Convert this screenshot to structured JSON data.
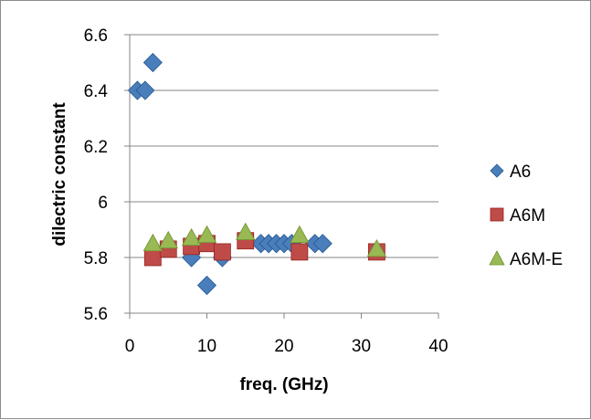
{
  "chart_data": {
    "type": "scatter",
    "title": "",
    "xlabel": "freq. (GHz)",
    "ylabel": "dilectric constant",
    "xlim": [
      0,
      40
    ],
    "ylim": [
      5.6,
      6.6
    ],
    "x_ticks": [
      "0",
      "10",
      "20",
      "30",
      "40"
    ],
    "y_ticks": [
      "5.6",
      "5.8",
      "6",
      "6.2",
      "6.4",
      "6.6"
    ],
    "grid": "horizontal",
    "legend_position": "right",
    "series": [
      {
        "name": "A6",
        "marker": "diamond",
        "color": "#4a7ebb",
        "points": [
          [
            1,
            6.4
          ],
          [
            2,
            6.4
          ],
          [
            3,
            6.5
          ],
          [
            8,
            5.8
          ],
          [
            10,
            5.7
          ],
          [
            12,
            5.8
          ],
          [
            17,
            5.85
          ],
          [
            18,
            5.85
          ],
          [
            19,
            5.85
          ],
          [
            20,
            5.85
          ],
          [
            21,
            5.85
          ],
          [
            24,
            5.85
          ],
          [
            25,
            5.85
          ]
        ]
      },
      {
        "name": "A6M",
        "marker": "square",
        "color": "#be4b48",
        "points": [
          [
            3,
            5.8
          ],
          [
            5,
            5.83
          ],
          [
            8,
            5.84
          ],
          [
            10,
            5.85
          ],
          [
            12,
            5.82
          ],
          [
            15,
            5.86
          ],
          [
            22,
            5.82
          ],
          [
            32,
            5.82
          ]
        ]
      },
      {
        "name": "A6M-E",
        "marker": "triangle",
        "color": "#98b954",
        "points": [
          [
            3,
            5.85
          ],
          [
            5,
            5.86
          ],
          [
            8,
            5.87
          ],
          [
            10,
            5.88
          ],
          [
            15,
            5.89
          ],
          [
            22,
            5.88
          ],
          [
            32,
            5.83
          ]
        ]
      }
    ]
  }
}
